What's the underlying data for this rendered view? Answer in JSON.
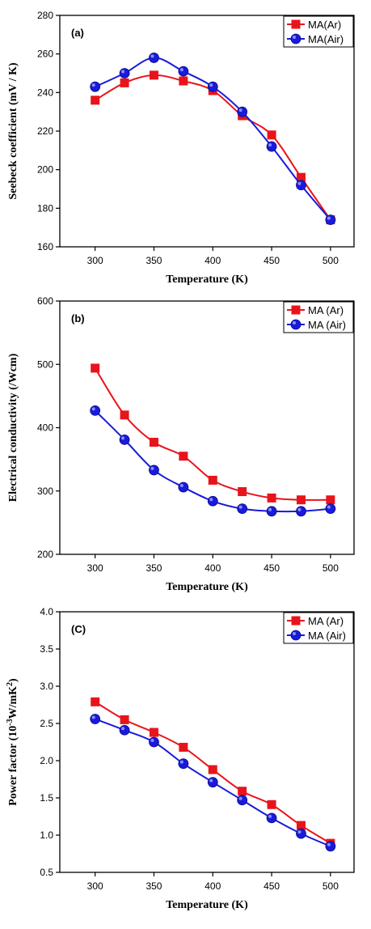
{
  "chart_data": [
    {
      "type": "line",
      "panel_label": "(a)",
      "xlabel": "Temperature (K)",
      "ylabel": "Seebeck coefficient (mV / K)",
      "xlim": [
        270,
        520
      ],
      "ylim": [
        160,
        280
      ],
      "xticks": [
        300,
        350,
        400,
        450,
        500
      ],
      "yticks": [
        160,
        180,
        200,
        220,
        240,
        260,
        280
      ],
      "ytick_decimals": 0,
      "legend_position": "top-right",
      "x": [
        300,
        325,
        350,
        375,
        400,
        425,
        450,
        475,
        500
      ],
      "series": [
        {
          "name": "MA(Ar)",
          "marker": "square",
          "color": "#e8141c",
          "values": [
            236,
            245,
            249,
            246,
            241,
            228,
            218,
            196,
            174
          ]
        },
        {
          "name": "MA(Air)",
          "marker": "circle",
          "color": "#1a1adb",
          "values": [
            243,
            250,
            258,
            251,
            243,
            230,
            212,
            192,
            174
          ]
        }
      ]
    },
    {
      "type": "line",
      "panel_label": "(b)",
      "xlabel": "Temperature (K)",
      "ylabel": "Electrical conductivity (/Wcm)",
      "xlim": [
        270,
        520
      ],
      "ylim": [
        200,
        600
      ],
      "xticks": [
        300,
        350,
        400,
        450,
        500
      ],
      "yticks": [
        200,
        300,
        400,
        500,
        600
      ],
      "ytick_decimals": 0,
      "legend_position": "top-right",
      "x": [
        300,
        325,
        350,
        375,
        400,
        425,
        450,
        475,
        500
      ],
      "series": [
        {
          "name": "MA (Ar)",
          "marker": "square",
          "color": "#e8141c",
          "values": [
            494,
            420,
            377,
            355,
            317,
            299,
            289,
            286,
            286
          ]
        },
        {
          "name": "MA (Air)",
          "marker": "circle",
          "color": "#1a1adb",
          "values": [
            427,
            381,
            333,
            306,
            284,
            272,
            268,
            268,
            272
          ]
        }
      ]
    },
    {
      "type": "line",
      "panel_label": "(C)",
      "xlabel": "Temperature (K)",
      "ylabel_parts": [
        "Power factor (10",
        "-3",
        "W/mK",
        "2",
        ")"
      ],
      "xlim": [
        270,
        520
      ],
      "ylim": [
        0.5,
        4.0
      ],
      "xticks": [
        300,
        350,
        400,
        450,
        500
      ],
      "yticks": [
        0.5,
        1.0,
        1.5,
        2.0,
        2.5,
        3.0,
        3.5,
        4.0
      ],
      "ytick_decimals": 1,
      "legend_position": "top-right",
      "x": [
        300,
        325,
        350,
        375,
        400,
        425,
        450,
        475,
        500
      ],
      "series": [
        {
          "name": "MA (Ar)",
          "marker": "square",
          "color": "#e8141c",
          "values": [
            2.79,
            2.55,
            2.38,
            2.18,
            1.88,
            1.59,
            1.41,
            1.13,
            0.89
          ]
        },
        {
          "name": "MA (Air)",
          "marker": "circle",
          "color": "#1a1adb",
          "values": [
            2.56,
            2.41,
            2.25,
            1.96,
            1.71,
            1.47,
            1.23,
            1.02,
            0.85
          ]
        }
      ]
    }
  ]
}
